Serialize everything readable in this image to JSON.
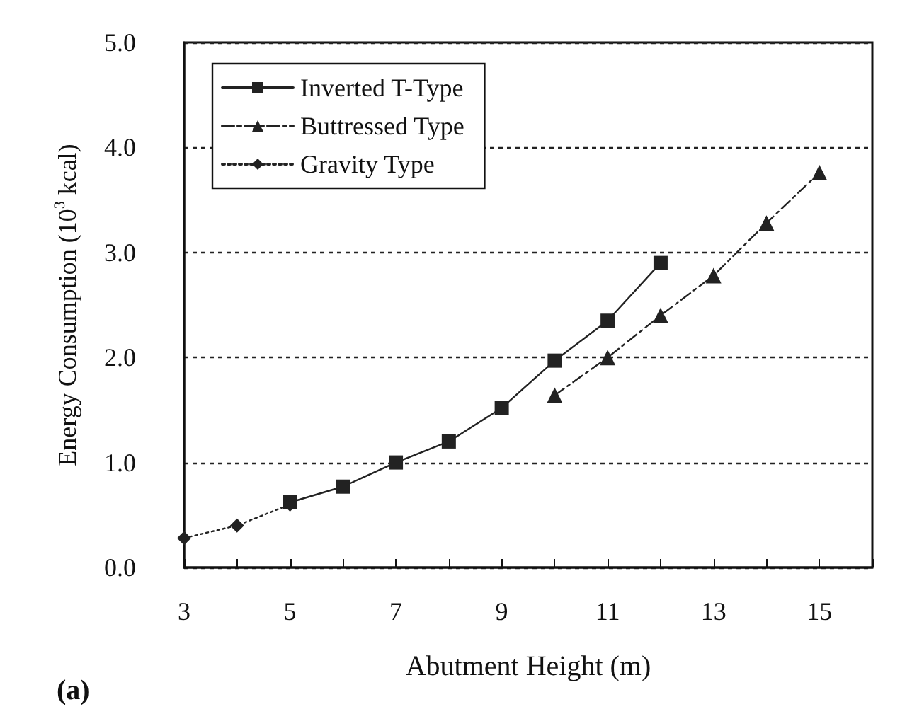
{
  "chart_data": {
    "type": "line",
    "xlabel": "Abutment Height (m)",
    "ylabel": "Energy Consumption (10$^{3}$ kcal)",
    "annotations": [
      "(a)"
    ],
    "xlim": [
      3,
      16
    ],
    "xticks": [
      3,
      {
        "value": 4,
        "label": null
      },
      5,
      {
        "value": 6,
        "label": null
      },
      7,
      {
        "value": 8,
        "label": null
      },
      9,
      {
        "value": 10,
        "label": null
      },
      11,
      {
        "value": 12,
        "label": null
      },
      13,
      {
        "value": 14,
        "label": null
      },
      15,
      {
        "value": 16,
        "label": null
      }
    ],
    "ylim": [
      0,
      5
    ],
    "yticks": [
      {
        "value": 0,
        "label": "0.0"
      },
      {
        "value": 1,
        "label": "1.0"
      },
      {
        "value": 2,
        "label": "2.0"
      },
      {
        "value": 3,
        "label": "3.0"
      },
      {
        "value": 4,
        "label": "4.0"
      },
      {
        "value": 5,
        "label": "5.0"
      }
    ],
    "grid": "y",
    "legend": "top left",
    "series": [
      {
        "name": "Inverted T-Type",
        "color": "#222222",
        "marker": "square",
        "line_style": "solid",
        "x": [
          5,
          6,
          7,
          8,
          9,
          10,
          11,
          12
        ],
        "values": [
          0.62,
          0.77,
          1.0,
          1.2,
          1.52,
          1.97,
          2.35,
          2.9
        ]
      },
      {
        "name": "Buttressed Type",
        "color": "#222222",
        "marker": "triangle",
        "line_style": "dashed",
        "x": [
          10,
          11,
          12,
          13,
          14,
          15
        ],
        "values": [
          1.64,
          2.0,
          2.4,
          2.78,
          3.28,
          3.76
        ]
      },
      {
        "name": "Gravity Type",
        "color": "#222222",
        "marker": "diamond",
        "line_style": "dotted",
        "x": [
          3,
          4,
          5
        ],
        "values": [
          0.28,
          0.4,
          0.6
        ]
      }
    ]
  }
}
